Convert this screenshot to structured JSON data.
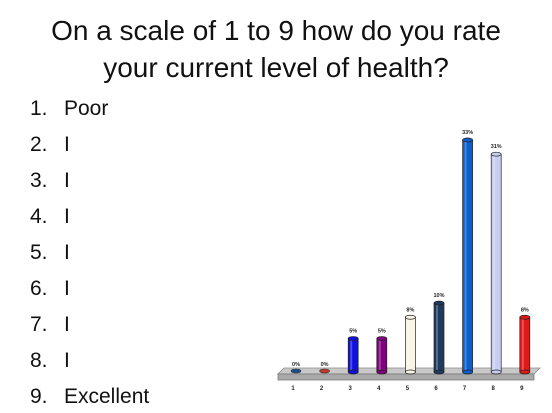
{
  "slide": {
    "title_lines": [
      "On a scale of 1 to 9 how do you rate",
      "your current level of health?"
    ],
    "scale_items": [
      {
        "number": "1.",
        "label": "Poor"
      },
      {
        "number": "2.",
        "label": "I"
      },
      {
        "number": "3.",
        "label": "I"
      },
      {
        "number": "4.",
        "label": "I"
      },
      {
        "number": "5.",
        "label": "I"
      },
      {
        "number": "6.",
        "label": "I"
      },
      {
        "number": "7.",
        "label": "I"
      },
      {
        "number": "8.",
        "label": "I"
      },
      {
        "number": "9.",
        "label": "Excellent"
      }
    ]
  },
  "chart_data": {
    "type": "bar",
    "categories": [
      "1",
      "2",
      "3",
      "4",
      "5",
      "6",
      "7",
      "8",
      "9"
    ],
    "values": [
      0,
      0,
      5,
      5,
      8,
      10,
      33,
      31,
      8
    ],
    "value_labels": [
      "0%",
      "0%",
      "5%",
      "5%",
      "8%",
      "10%",
      "33%",
      "31%",
      "8%"
    ],
    "unit": "%",
    "title": "",
    "xlabel": "",
    "ylabel": "",
    "ylim": [
      0,
      33
    ],
    "grid": false,
    "legend": "none",
    "bar_colors": [
      "#1f4e8c",
      "#c0392b",
      "#1010e0",
      "#800080",
      "#f8f5e6",
      "#1f3a5f",
      "#0a5ecf",
      "#c8cef2",
      "#e01818"
    ],
    "floor_color": "#a9a9a9"
  }
}
